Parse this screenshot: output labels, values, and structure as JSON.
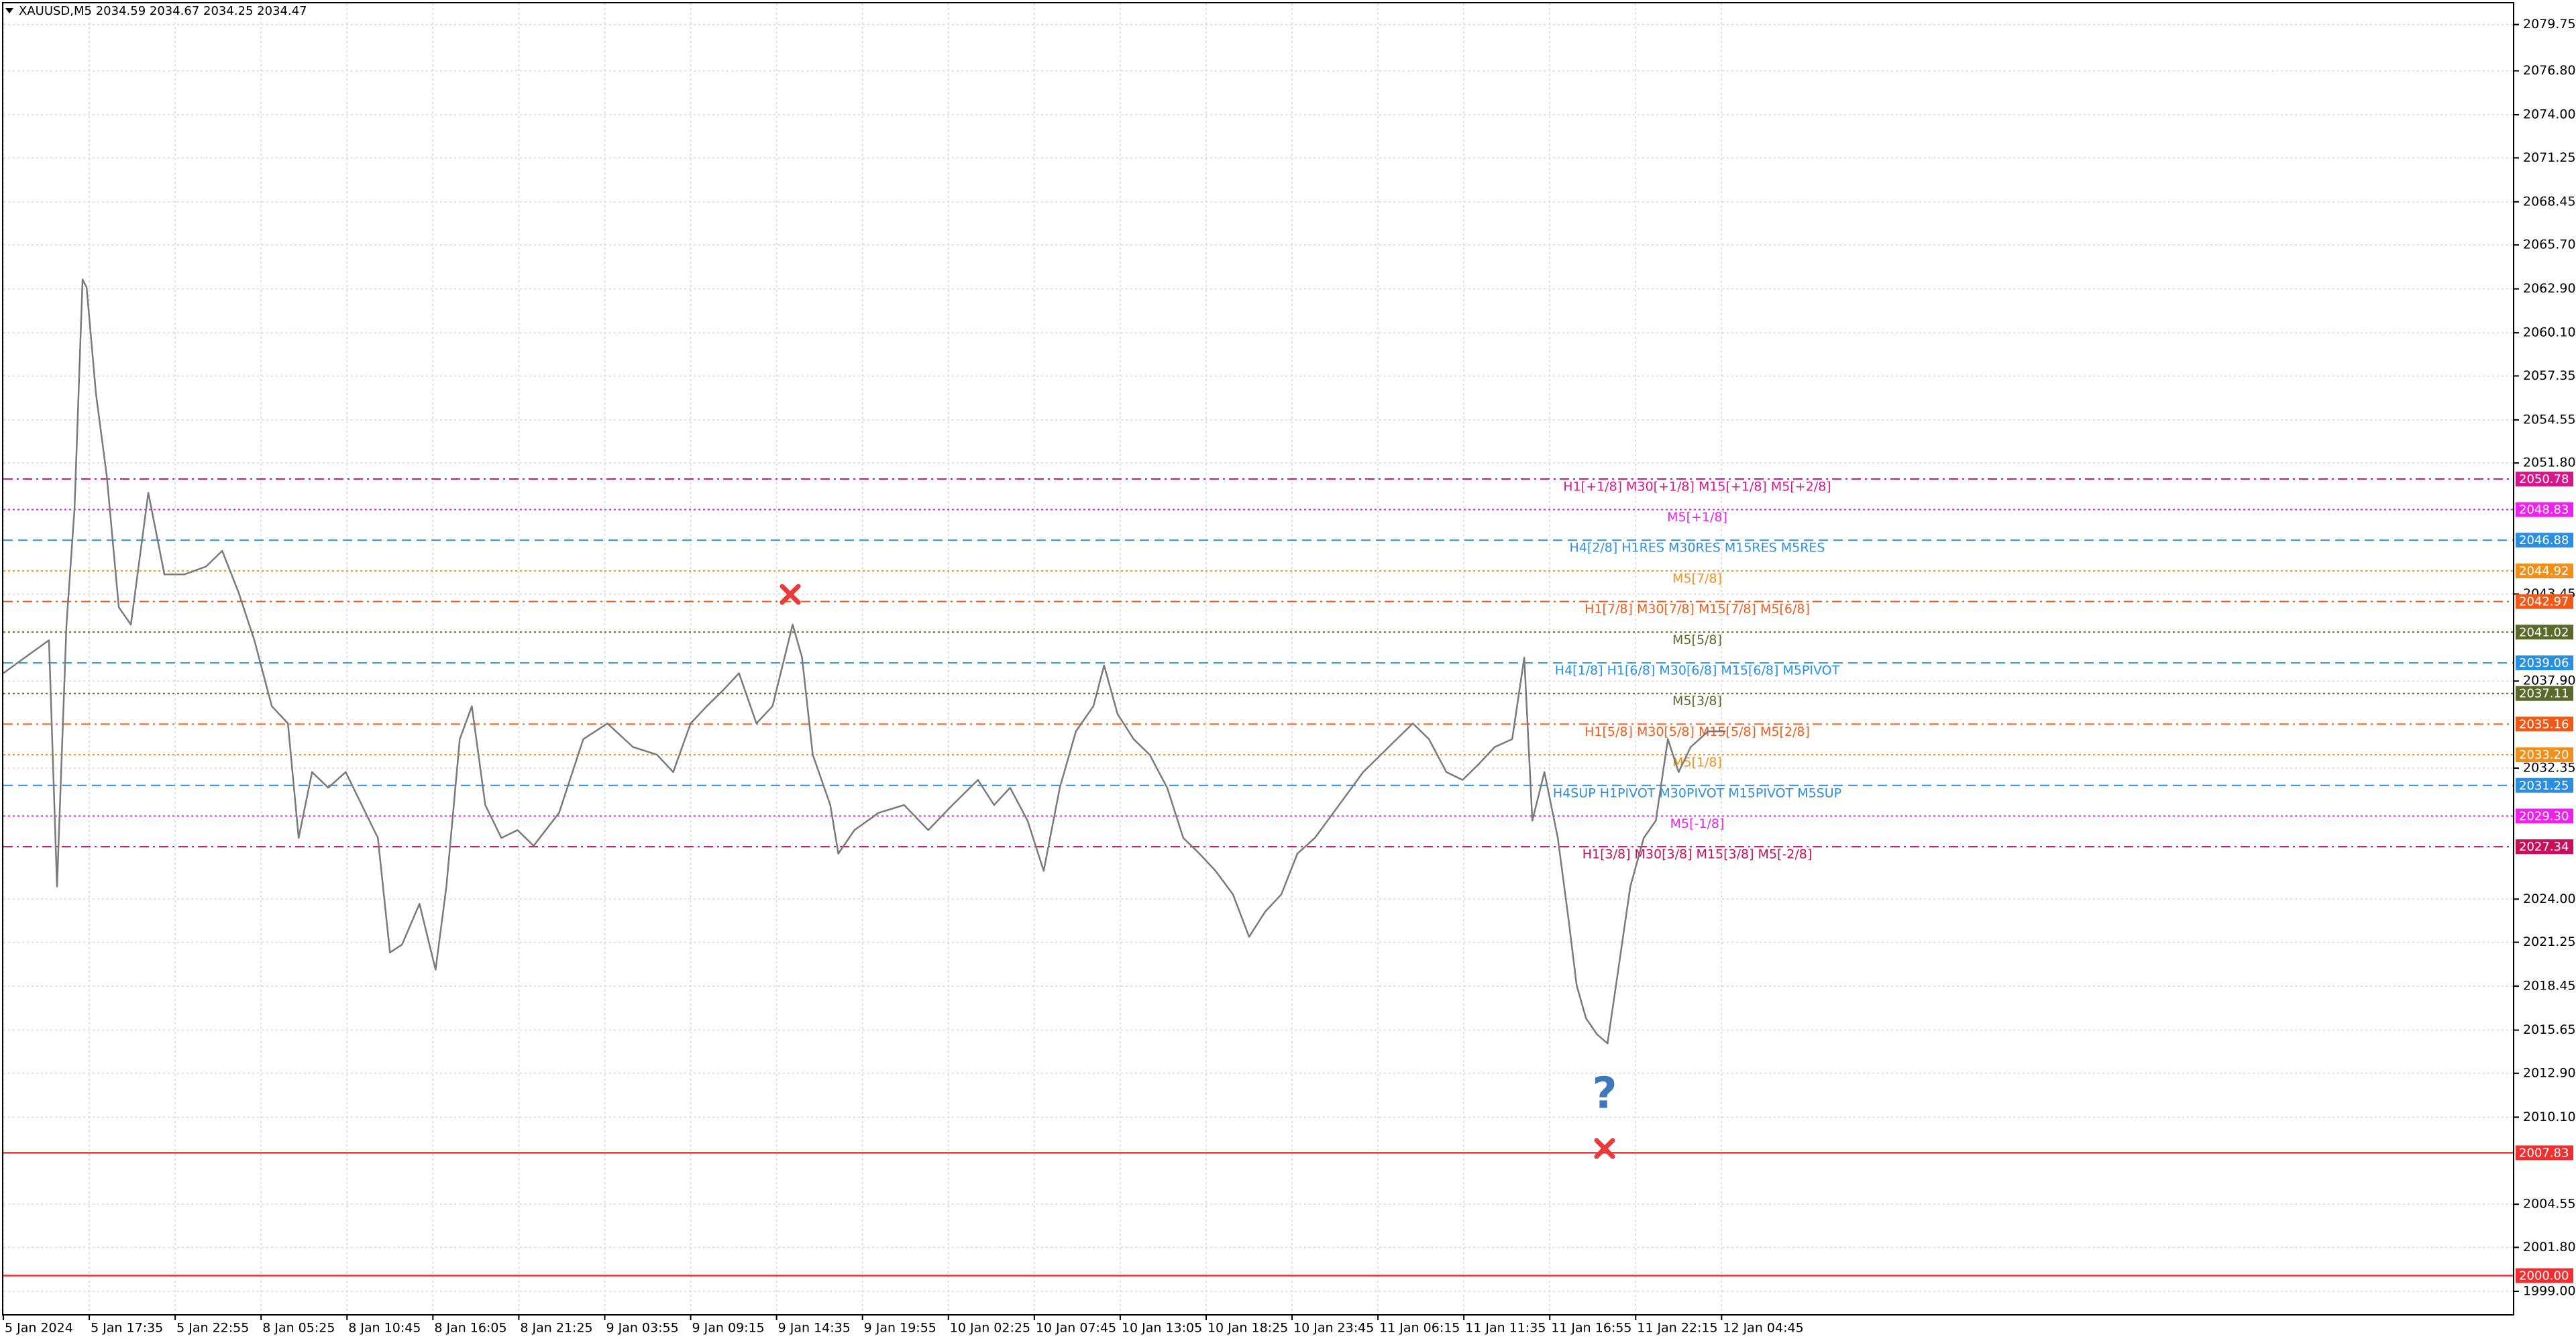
{
  "chart_data": {
    "type": "line",
    "title": "XAUUSD,M5  2034.59 2034.67 2034.25 2034.47",
    "color": "#7a7a7a",
    "grid": true,
    "x": [
      0,
      16,
      34,
      40,
      47,
      53,
      59,
      62,
      69,
      77,
      86,
      95,
      108,
      120,
      135,
      151,
      163,
      175,
      187,
      200,
      212,
      220,
      230,
      242,
      255,
      267,
      279,
      288,
      297,
      310,
      322,
      330,
      340,
      349,
      359,
      371,
      383,
      395,
      414,
      432,
      450,
      469,
      487,
      499,
      512,
      524,
      536,
      548,
      561,
      573,
      588,
      595,
      603,
      616,
      622,
      634,
      652,
      671,
      689,
      707,
      726,
      738,
      750,
      763,
      775,
      787,
      799,
      812,
      820,
      830,
      842,
      854,
      867,
      879,
      891,
      903,
      916,
      928,
      940,
      952,
      964,
      977,
      995,
      1013,
      1032,
      1050,
      1062,
      1075,
      1087,
      1099,
      1111,
      1124,
      1133,
      1139,
      1148,
      1158,
      1166,
      1172,
      1179,
      1187,
      1195,
      1203,
      1212,
      1222,
      1231,
      1240,
      1248,
      1257,
      1270,
      1283
    ],
    "values": [
      2038.4,
      2039.4,
      2040.5,
      2024.8,
      2041.5,
      2048.9,
      2063.5,
      2063.0,
      2056.2,
      2051.0,
      2042.6,
      2041.5,
      2049.9,
      2044.7,
      2044.7,
      2045.2,
      2046.2,
      2043.6,
      2040.5,
      2036.3,
      2035.2,
      2027.9,
      2032.1,
      2031.1,
      2032.1,
      2030.0,
      2027.9,
      2020.6,
      2021.1,
      2023.7,
      2019.5,
      2024.8,
      2034.2,
      2036.3,
      2030.0,
      2027.9,
      2028.4,
      2027.4,
      2029.5,
      2034.2,
      2035.2,
      2033.7,
      2033.2,
      2032.1,
      2035.2,
      2036.3,
      2037.3,
      2038.4,
      2035.2,
      2036.3,
      2041.5,
      2039.4,
      2033.2,
      2030.0,
      2026.9,
      2028.4,
      2029.5,
      2030.0,
      2028.4,
      2030.0,
      2031.6,
      2030.0,
      2031.1,
      2029.0,
      2025.8,
      2031.1,
      2034.7,
      2036.3,
      2038.9,
      2035.8,
      2034.2,
      2033.2,
      2031.1,
      2027.9,
      2026.9,
      2025.8,
      2024.3,
      2021.6,
      2023.2,
      2024.3,
      2026.9,
      2027.9,
      2030.0,
      2032.1,
      2033.7,
      2035.2,
      2034.2,
      2032.1,
      2031.6,
      2032.6,
      2033.7,
      2034.2,
      2039.4,
      2029.0,
      2032.1,
      2027.9,
      2022.7,
      2018.5,
      2016.4,
      2015.4,
      2014.8,
      2019.5,
      2024.8,
      2027.9,
      2029.0,
      2034.2,
      2032.1,
      2033.7,
      2034.7,
      2034.7
    ],
    "xlim": [
      0,
      1870
    ],
    "xticks": [
      {
        "value": 0,
        "label": "5 Jan 2024"
      },
      {
        "value": 64,
        "label": "5 Jan 17:35"
      },
      {
        "value": 128,
        "label": "5 Jan 22:55"
      },
      {
        "value": 192,
        "label": "8 Jan 05:25"
      },
      {
        "value": 256,
        "label": "8 Jan 10:45"
      },
      {
        "value": 320,
        "label": "8 Jan 16:05"
      },
      {
        "value": 384,
        "label": "8 Jan 21:25"
      },
      {
        "value": 448,
        "label": "9 Jan 03:55"
      },
      {
        "value": 512,
        "label": "9 Jan 09:15"
      },
      {
        "value": 576,
        "label": "9 Jan 14:35"
      },
      {
        "value": 640,
        "label": "9 Jan 19:55"
      },
      {
        "value": 704,
        "label": "10 Jan 02:25"
      },
      {
        "value": 768,
        "label": "10 Jan 07:45"
      },
      {
        "value": 832,
        "label": "10 Jan 13:05"
      },
      {
        "value": 896,
        "label": "10 Jan 18:25"
      },
      {
        "value": 960,
        "label": "10 Jan 23:45"
      },
      {
        "value": 1024,
        "label": "11 Jan 06:15"
      },
      {
        "value": 1088,
        "label": "11 Jan 11:35"
      },
      {
        "value": 1152,
        "label": "11 Jan 16:55"
      },
      {
        "value": 1216,
        "label": "11 Jan 22:15"
      },
      {
        "value": 1280,
        "label": "12 Jan 04:45"
      }
    ],
    "ylim": [
      1997.5,
      2081.1
    ],
    "yticks": [
      2079.75,
      {
        "value": 2076.8,
        "label": "2076.80"
      },
      {
        "value": 2074,
        "label": "2074.00"
      },
      2071.25,
      2068.45,
      {
        "value": 2065.7,
        "label": "2065.70"
      },
      {
        "value": 2062.9,
        "label": "2062.90"
      },
      {
        "value": 2060.1,
        "label": "2060.10"
      },
      2057.35,
      2054.55,
      {
        "value": 2051.8,
        "label": "2051.80"
      },
      2043.45,
      {
        "value": 2037.9,
        "label": "2037.90"
      },
      2032.35,
      {
        "value": 2024,
        "label": "2024.00"
      },
      2021.25,
      2018.45,
      2015.65,
      {
        "value": 2012.9,
        "label": "2012.90"
      },
      {
        "value": 2010.1,
        "label": "2010.10"
      },
      2004.55,
      {
        "value": 2001.8,
        "label": "2001.80"
      },
      {
        "value": 1999,
        "label": "1999.00"
      }
    ],
    "levels": [
      {
        "label": "H1[+1/8] M30[+1/8] M15[+1/8] M5[+2/8]",
        "price": 2050.78,
        "color": "#d6168a",
        "style": "dashdot"
      },
      {
        "label": "M5[+1/8]",
        "price": 2048.83,
        "color": "#ee22ee",
        "style": "dotted"
      },
      {
        "label": "H4[2/8] H1RES M30RES M15RES M5RES",
        "price": 2046.88,
        "color": "#2a8fe0",
        "style": "dashed"
      },
      {
        "label": "M5[7/8]",
        "price": 2044.92,
        "color": "#f0901a",
        "style": "dotted"
      },
      {
        "label": "H1[7/8] M30[7/8] M15[7/8] M5[6/8]",
        "price": 2042.97,
        "color": "#f05a18",
        "style": "dashdot"
      },
      {
        "label": "M5[5/8]",
        "price": 2041.02,
        "color": "#5a6a2a",
        "style": "dotted"
      },
      {
        "label": "H4[1/8] H1[6/8] M30[6/8] M15[6/8] M5PIVOT",
        "price": 2039.06,
        "color": "#2a8fe0",
        "style": "dashed"
      },
      {
        "label": "M5[3/8]",
        "price": 2037.11,
        "color": "#5a6a2a",
        "style": "dotted"
      },
      {
        "label": "H1[5/8] M30[5/8] M15[5/8] M5[2/8]",
        "price": 2035.16,
        "color": "#f05a18",
        "style": "dashdot"
      },
      {
        "label": "M5[1/8]",
        "price": {
          "value": 2033.2,
          "label": "2033.20"
        },
        "color": "#f0901a",
        "style": "dotted"
      },
      {
        "label": "H4SUP H1PIVOT M30PIVOT M15PIVOT M5SUP",
        "price": 2031.25,
        "color": "#2a8fe0",
        "style": "dashed"
      },
      {
        "label": "M5[-1/8]",
        "price": {
          "value": 2029.3,
          "label": "2029.30"
        },
        "color": "#ee22ee",
        "style": "dotted"
      },
      {
        "label": "H1[3/8] M30[3/8] M15[3/8] M5[-2/8]",
        "price": 2027.34,
        "color": "#c8105a",
        "style": "dashdot"
      },
      {
        "price": 2007.83,
        "color": "#f03030",
        "style": "solid"
      },
      {
        "price": {
          "value": 2000,
          "label": "2000.00"
        },
        "color": "#f03030",
        "style": "solid"
      }
    ]
  }
}
